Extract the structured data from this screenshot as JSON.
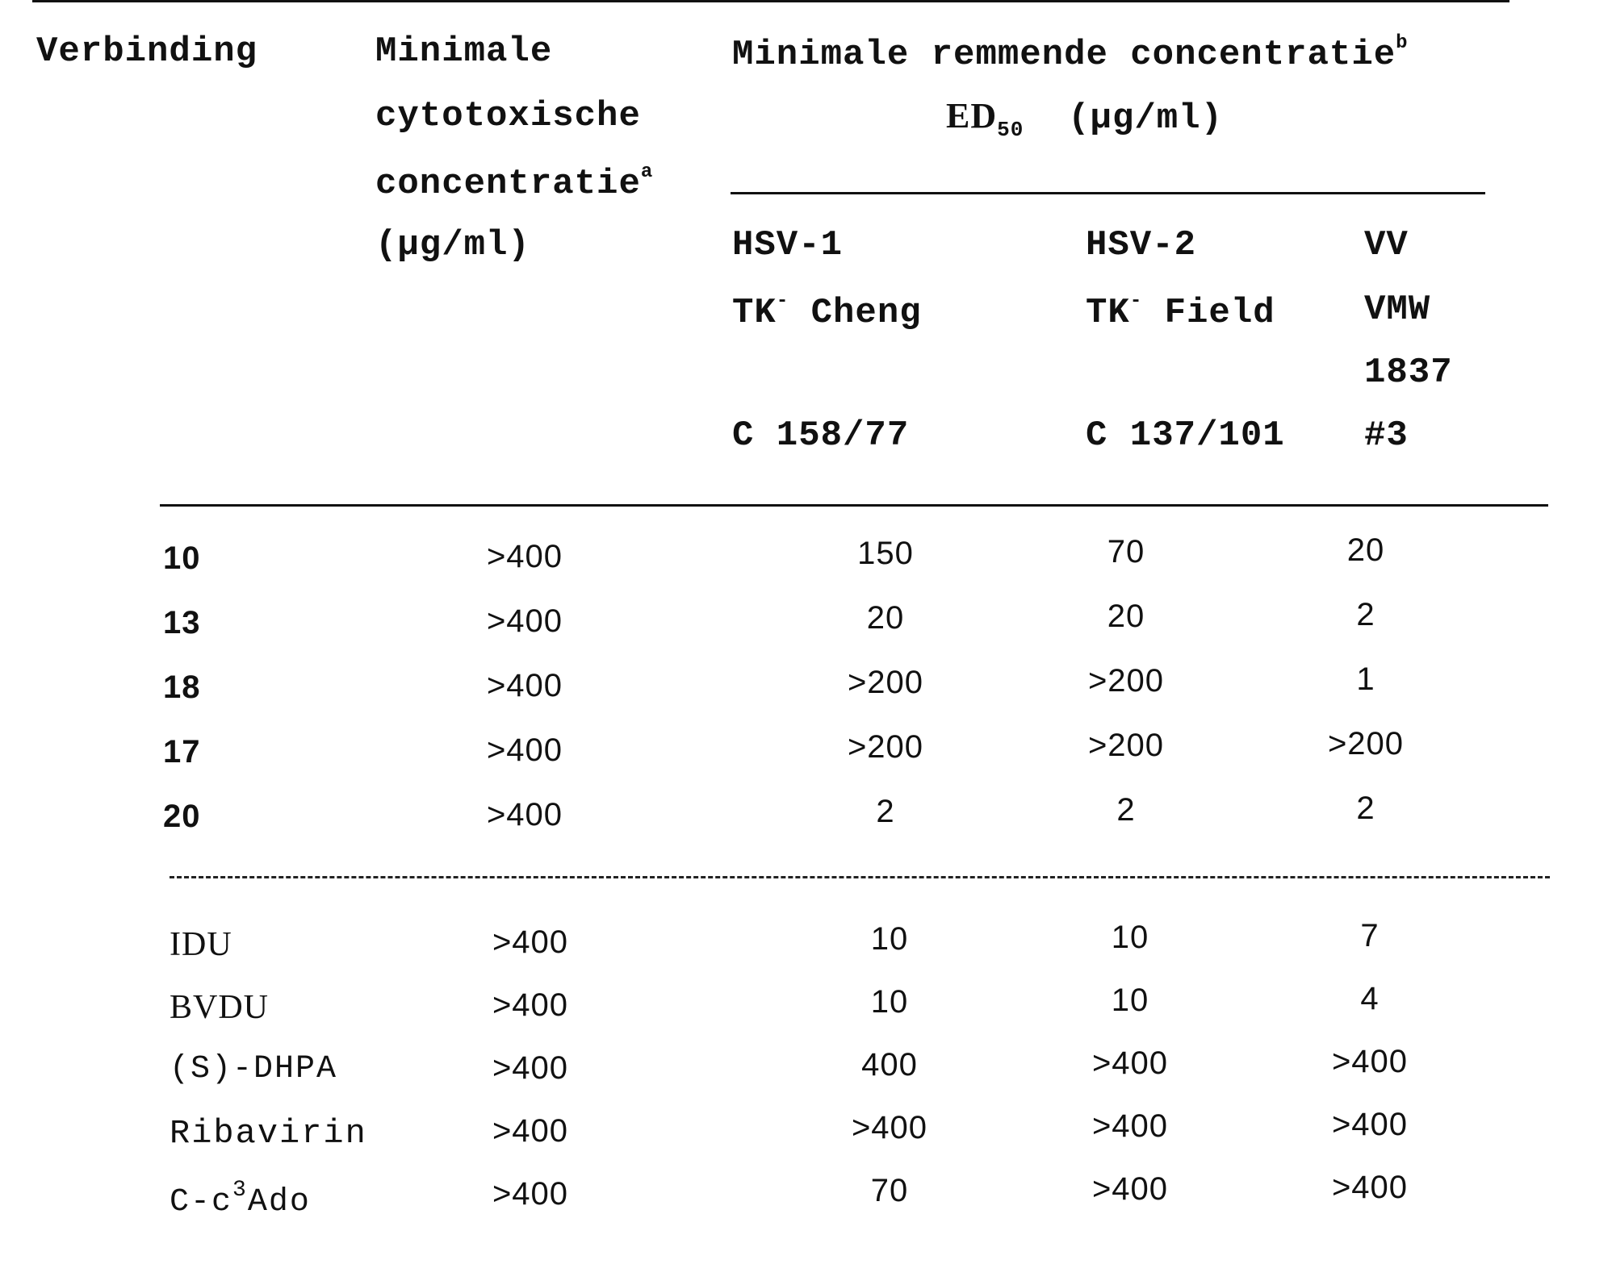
{
  "header": {
    "compound": "Verbinding",
    "cytotox": [
      "Minimale",
      "cytotoxische",
      "concentratie"
    ],
    "cytotox_sup": "a",
    "cytotox_unit": "(μg/ml)",
    "mic": "Minimale remmende concentratie",
    "mic_sup": "b",
    "ed": "ED",
    "ed_sub": "50",
    "ed_unit": "(μg/ml)",
    "virus_cols": [
      {
        "l1": "HSV-1",
        "l2a": "TK",
        "l2sup": "-",
        "l2b": "Cheng",
        "l3": "",
        "l4": "C 158/77"
      },
      {
        "l1": "HSV-2",
        "l2a": "TK",
        "l2sup": "-",
        "l2b": "Field",
        "l3": "",
        "l4": "C 137/101"
      },
      {
        "l1": "VV",
        "l2a": "VMW",
        "l2sup": "",
        "l2b": "",
        "l3": "1837",
        "l4": "#3"
      }
    ]
  },
  "group1": [
    {
      "compound": "10",
      "cytotox": ">400",
      "hsv1": "150",
      "hsv2": "70",
      "vv": "20"
    },
    {
      "compound": "13",
      "cytotox": ">400",
      "hsv1": "20",
      "hsv2": "20",
      "vv": "2"
    },
    {
      "compound": "18",
      "cytotox": ">400",
      "hsv1": ">200",
      "hsv2": ">200",
      "vv": "1"
    },
    {
      "compound": "17",
      "cytotox": ">400",
      "hsv1": ">200",
      "hsv2": ">200",
      "vv": ">200"
    },
    {
      "compound": "20",
      "cytotox": ">400",
      "hsv1": "2",
      "hsv2": "2",
      "vv": "2"
    }
  ],
  "group2": [
    {
      "compound": "IDU",
      "cytotox": ">400",
      "hsv1": "10",
      "hsv2": "10",
      "vv": "7"
    },
    {
      "compound": "BVDU",
      "cytotox": ">400",
      "hsv1": "10",
      "hsv2": "10",
      "vv": "4"
    },
    {
      "compound": "(S)-DHPA",
      "cytotox": ">400",
      "hsv1": "400",
      "hsv2": ">400",
      "vv": ">400"
    },
    {
      "compound": "Ribavirin",
      "cytotox": ">400",
      "hsv1": ">400",
      "hsv2": ">400",
      "vv": ">400"
    },
    {
      "compound_pre": "C-c",
      "compound_sup": "3",
      "compound_post": "Ado",
      "cytotox": ">400",
      "hsv1": "70",
      "hsv2": ">400",
      "vv": ">400"
    }
  ]
}
